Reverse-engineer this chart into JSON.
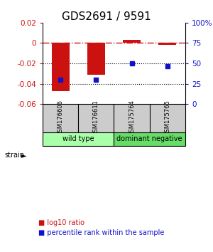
{
  "title": "GDS2691 / 9591",
  "samples": [
    "GSM176606",
    "GSM176611",
    "GSM175764",
    "GSM175765"
  ],
  "log10_ratio": [
    -0.047,
    -0.031,
    0.003,
    -0.002
  ],
  "percentile_rank": [
    30,
    30,
    50,
    47
  ],
  "ylim_left": [
    -0.06,
    0.02
  ],
  "ylim_right": [
    0,
    100
  ],
  "yticks_left": [
    -0.06,
    -0.04,
    -0.02,
    0.0,
    0.02
  ],
  "yticks_right": [
    0,
    25,
    50,
    75,
    100
  ],
  "ytick_labels_right": [
    "0",
    "25",
    "50",
    "75",
    "100%"
  ],
  "bar_color": "#cc1111",
  "dot_color": "#1111cc",
  "strain_groups": [
    {
      "label": "wild type",
      "samples": [
        0,
        1
      ],
      "color": "#aaffaa"
    },
    {
      "label": "dominant negative",
      "samples": [
        2,
        3
      ],
      "color": "#66dd66"
    }
  ],
  "strain_label": "strain",
  "legend_red": "log10 ratio",
  "legend_blue": "percentile rank within the sample",
  "bar_width": 0.5,
  "hline_color": "#cc1111",
  "dotted_color": "#000000",
  "sample_box_color": "#cccccc",
  "background_color": "#ffffff",
  "title_fontsize": 11,
  "tick_fontsize": 7.5,
  "sample_fontsize": 6,
  "strain_fontsize": 7,
  "legend_fontsize": 7
}
